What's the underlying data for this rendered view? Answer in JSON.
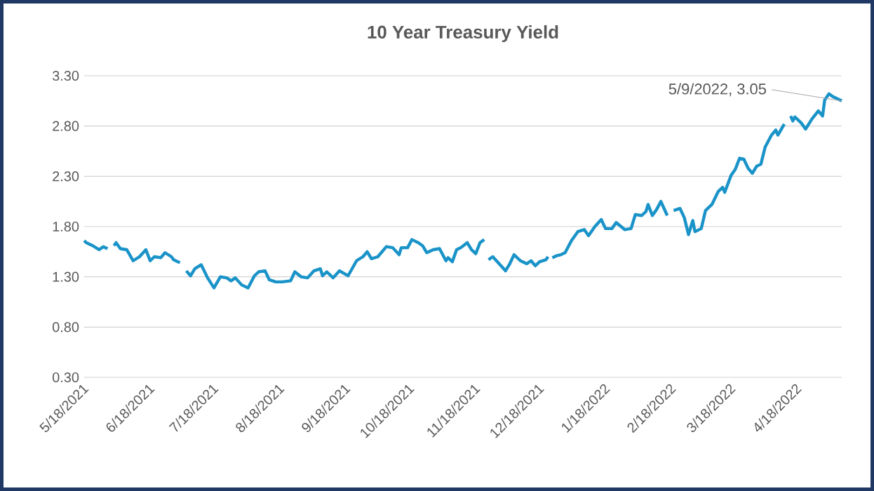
{
  "chart_data": {
    "type": "line",
    "title": "10 Year Treasury Yield",
    "x": [
      "2021-05-18",
      "2021-05-19",
      "2021-05-22",
      "2021-05-25",
      "2021-05-27",
      "2021-05-29",
      "2021-05-31",
      "2021-06-01",
      "2021-06-02",
      "2021-06-04",
      "2021-06-07",
      "2021-06-10",
      "2021-06-13",
      "2021-06-16",
      "2021-06-18",
      "2021-06-20",
      "2021-06-23",
      "2021-06-25",
      "2021-06-28",
      "2021-06-29",
      "2021-07-02",
      "2021-07-04",
      "2021-07-05",
      "2021-07-07",
      "2021-07-09",
      "2021-07-12",
      "2021-07-15",
      "2021-07-18",
      "2021-07-21",
      "2021-07-24",
      "2021-07-26",
      "2021-07-28",
      "2021-07-31",
      "2021-08-03",
      "2021-08-06",
      "2021-08-08",
      "2021-08-11",
      "2021-08-13",
      "2021-08-16",
      "2021-08-19",
      "2021-08-23",
      "2021-08-25",
      "2021-08-28",
      "2021-08-31",
      "2021-09-03",
      "2021-09-06",
      "2021-09-07",
      "2021-09-09",
      "2021-09-12",
      "2021-09-15",
      "2021-09-19",
      "2021-09-23",
      "2021-09-26",
      "2021-09-28",
      "2021-09-30",
      "2021-10-03",
      "2021-10-07",
      "2021-10-10",
      "2021-10-13",
      "2021-10-14",
      "2021-10-17",
      "2021-10-19",
      "2021-10-22",
      "2021-10-24",
      "2021-10-26",
      "2021-10-29",
      "2021-11-01",
      "2021-11-04",
      "2021-11-05",
      "2021-11-07",
      "2021-11-09",
      "2021-11-11",
      "2021-11-14",
      "2021-11-16",
      "2021-11-18",
      "2021-11-20",
      "2021-11-22",
      "2021-11-23",
      "2021-11-24",
      "2021-11-26",
      "2021-11-29",
      "2021-12-02",
      "2021-12-04",
      "2021-12-06",
      "2021-12-09",
      "2021-12-12",
      "2021-12-14",
      "2021-12-16",
      "2021-12-18",
      "2021-12-21",
      "2021-12-22",
      "2021-12-23",
      "2021-12-24",
      "2021-12-25",
      "2021-12-26",
      "2021-12-28",
      "2021-12-30",
      "2022-01-02",
      "2022-01-05",
      "2022-01-08",
      "2022-01-10",
      "2022-01-13",
      "2022-01-16",
      "2022-01-18",
      "2022-01-21",
      "2022-01-23",
      "2022-01-27",
      "2022-01-30",
      "2022-02-01",
      "2022-02-04",
      "2022-02-06",
      "2022-02-07",
      "2022-02-09",
      "2022-02-11",
      "2022-02-13",
      "2022-02-16",
      "2022-02-17",
      "2022-02-19",
      "2022-02-22",
      "2022-02-24",
      "2022-02-26",
      "2022-02-28",
      "2022-03-01",
      "2022-03-04",
      "2022-03-06",
      "2022-03-09",
      "2022-03-12",
      "2022-03-14",
      "2022-03-15",
      "2022-03-18",
      "2022-03-20",
      "2022-03-22",
      "2022-03-24",
      "2022-03-26",
      "2022-03-28",
      "2022-03-30",
      "2022-04-01",
      "2022-04-03",
      "2022-04-06",
      "2022-04-08",
      "2022-04-09",
      "2022-04-12",
      "2022-04-14",
      "2022-04-15",
      "2022-04-16",
      "2022-04-17",
      "2022-04-20",
      "2022-04-22",
      "2022-04-25",
      "2022-04-28",
      "2022-04-30",
      "2022-05-01",
      "2022-05-03",
      "2022-05-05",
      "2022-05-09"
    ],
    "values": [
      1.66,
      1.64,
      1.61,
      1.57,
      1.6,
      1.58,
      null,
      1.61,
      1.64,
      1.58,
      1.57,
      1.46,
      1.5,
      1.57,
      1.46,
      1.5,
      1.49,
      1.54,
      1.5,
      1.47,
      1.44,
      null,
      1.36,
      1.31,
      1.38,
      1.42,
      1.29,
      1.19,
      1.3,
      1.29,
      1.26,
      1.29,
      1.22,
      1.19,
      1.31,
      1.35,
      1.36,
      1.27,
      1.25,
      1.25,
      1.26,
      1.35,
      1.3,
      1.29,
      1.36,
      1.38,
      1.31,
      1.35,
      1.29,
      1.36,
      1.31,
      1.46,
      1.5,
      1.55,
      1.48,
      1.5,
      1.6,
      1.59,
      1.52,
      1.59,
      1.59,
      1.67,
      1.64,
      1.61,
      1.54,
      1.57,
      1.58,
      1.46,
      1.49,
      1.45,
      1.57,
      1.59,
      1.64,
      1.57,
      1.53,
      1.64,
      1.67,
      null,
      1.47,
      1.5,
      1.43,
      1.36,
      1.43,
      1.52,
      1.46,
      1.43,
      1.46,
      1.41,
      1.45,
      1.47,
      1.5,
      null,
      1.49,
      1.5,
      1.51,
      1.52,
      1.54,
      1.66,
      1.75,
      1.77,
      1.71,
      1.8,
      1.87,
      1.78,
      1.78,
      1.84,
      1.77,
      1.78,
      1.92,
      1.91,
      1.95,
      2.02,
      1.91,
      1.97,
      2.05,
      1.91,
      null,
      1.96,
      1.98,
      1.89,
      1.72,
      1.86,
      1.75,
      1.78,
      1.96,
      2.02,
      2.15,
      2.19,
      2.14,
      2.31,
      2.37,
      2.48,
      2.47,
      2.38,
      2.33,
      2.4,
      2.42,
      2.59,
      2.71,
      2.76,
      2.71,
      2.82,
      null,
      2.9,
      2.85,
      2.89,
      2.83,
      2.77,
      2.87,
      2.95,
      2.9,
      3.06,
      3.12,
      3.09,
      3.05
    ],
    "color": "#1a93c8",
    "xlim": [
      "2021-05-18",
      "2022-05-09"
    ],
    "xticks": [
      {
        "value": "2021-05-18",
        "label": "5/18/2021"
      },
      {
        "value": "2021-06-18",
        "label": "6/18/2021"
      },
      {
        "value": "2021-07-18",
        "label": "7/18/2021"
      },
      {
        "value": "2021-08-18",
        "label": "8/18/2021"
      },
      {
        "value": "2021-09-18",
        "label": "9/18/2021"
      },
      {
        "value": "2021-10-18",
        "label": "10/18/2021"
      },
      {
        "value": "2021-11-18",
        "label": "11/18/2021"
      },
      {
        "value": "2021-12-18",
        "label": "12/18/2021"
      },
      {
        "value": "2022-01-18",
        "label": "1/18/2022"
      },
      {
        "value": "2022-02-18",
        "label": "2/18/2022"
      },
      {
        "value": "2022-03-18",
        "label": "3/18/2022"
      },
      {
        "value": "2022-04-18",
        "label": "4/18/2022"
      }
    ],
    "ylim": [
      0.3,
      3.3
    ],
    "yticks": [
      {
        "value": 0.3,
        "label": "0.30"
      },
      {
        "value": 0.8,
        "label": "0.80"
      },
      {
        "value": 1.3,
        "label": "1.30"
      },
      {
        "value": 1.8,
        "label": "1.80"
      },
      {
        "value": 2.3,
        "label": "2.30"
      },
      {
        "value": 2.8,
        "label": "2.80"
      },
      {
        "value": 3.3,
        "label": "3.30"
      }
    ],
    "grid": "y",
    "annotations": [
      {
        "text": "5/9/2022,  3.05",
        "x": "2022-05-09",
        "y": 3.05
      }
    ]
  }
}
